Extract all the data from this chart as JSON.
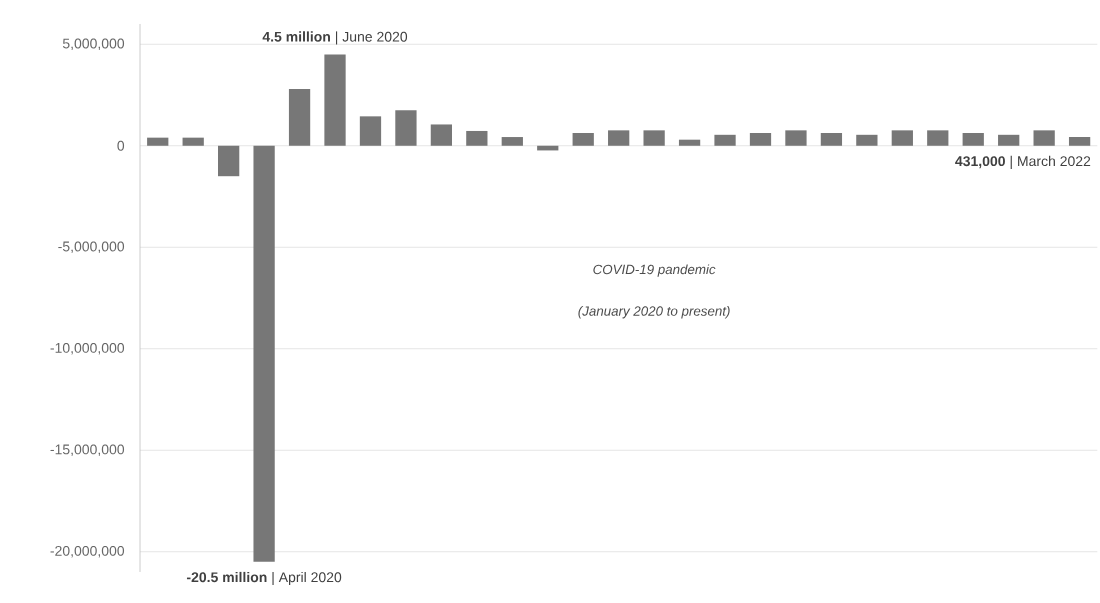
{
  "chart_data": {
    "type": "bar",
    "categories": [
      null,
      null,
      null,
      null,
      null,
      null,
      null,
      null,
      null,
      null,
      null,
      null,
      null,
      null,
      null,
      null,
      null,
      null,
      null,
      null,
      null,
      null,
      null,
      null,
      null,
      null,
      null
    ],
    "values": [
      400000,
      400000,
      -1500000,
      -20500000,
      2800000,
      4500000,
      1450000,
      1750000,
      1050000,
      730000,
      430000,
      -230000,
      630000,
      760000,
      760000,
      300000,
      540000,
      630000,
      760000,
      630000,
      540000,
      760000,
      760000,
      630000,
      540000,
      760000,
      431000
    ],
    "color": "#777777",
    "ylim": [
      -21000000,
      6000000
    ],
    "yticks": [
      {
        "value": -20000000,
        "label": "-20,000,000"
      },
      {
        "value": -15000000,
        "label": "-15,000,000"
      },
      {
        "value": -10000000,
        "label": "-10,000,000"
      },
      {
        "value": -5000000,
        "label": "-5,000,000"
      },
      {
        "value": 0,
        "label": "0"
      },
      {
        "value": 5000000,
        "label": "5,000,000"
      }
    ],
    "grid": "y",
    "annotations": [
      "**4.5 million** | June 2020",
      "**-20.5 million** | April 2020",
      "**431,000** | March 2022",
      "COVID-19 pandemic",
      "(January 2020 to present)"
    ]
  }
}
